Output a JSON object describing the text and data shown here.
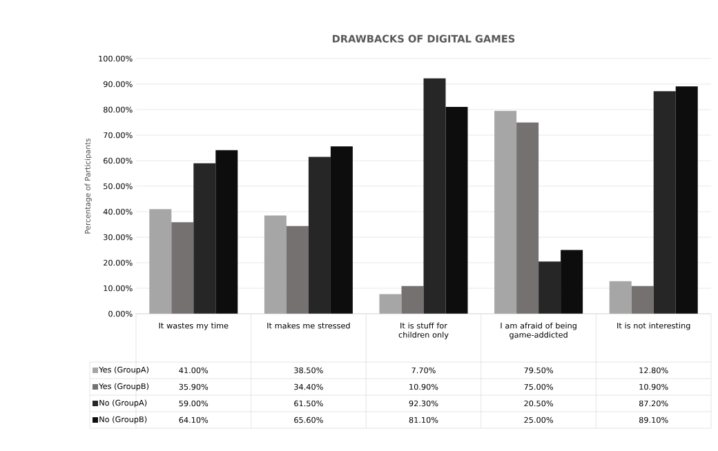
{
  "chart_data": {
    "type": "bar",
    "title": "DRAWBACKS OF DIGITAL GAMES",
    "ylabel": "Percentage of Participants",
    "categories": [
      "It wastes my time",
      "It makes me stressed",
      "It is stuff for children only",
      "I am afraid of being game-addicted",
      "It is not interesting"
    ],
    "series": [
      {
        "name": "Yes (GroupA)",
        "color": "#a6a6a6",
        "values": [
          41.0,
          38.5,
          7.7,
          79.5,
          12.8
        ],
        "value_labels": [
          "41.00%",
          "38.50%",
          "7.70%",
          "79.50%",
          "12.80%"
        ]
      },
      {
        "name": "Yes (GroupB)",
        "color": "#767171",
        "values": [
          35.9,
          34.4,
          10.9,
          75.0,
          10.9
        ],
        "value_labels": [
          "35.90%",
          "34.40%",
          "10.90%",
          "75.00%",
          "10.90%"
        ]
      },
      {
        "name": "No (GroupA)",
        "color": "#262626",
        "values": [
          59.0,
          61.5,
          92.3,
          20.5,
          87.2
        ],
        "value_labels": [
          "59.00%",
          "61.50%",
          "92.30%",
          "20.50%",
          "87.20%"
        ]
      },
      {
        "name": "No (GroupB)",
        "color": "#0d0d0d",
        "values": [
          64.1,
          65.6,
          81.1,
          25.0,
          89.1
        ],
        "value_labels": [
          "64.10%",
          "65.60%",
          "81.10%",
          "25.00%",
          "89.10%"
        ]
      }
    ],
    "ylim": [
      0,
      100
    ],
    "yticks": [
      {
        "value": 0,
        "label": "0.00%"
      },
      {
        "value": 10,
        "label": "10.00%"
      },
      {
        "value": 20,
        "label": "20.00%"
      },
      {
        "value": 30,
        "label": "30.00%"
      },
      {
        "value": 40,
        "label": "40.00%"
      },
      {
        "value": 50,
        "label": "50.00%"
      },
      {
        "value": 60,
        "label": "60.00%"
      },
      {
        "value": 70,
        "label": "70.00%"
      },
      {
        "value": 80,
        "label": "80.00%"
      },
      {
        "value": 90,
        "label": "90.00%"
      },
      {
        "value": 100,
        "label": "100.00%"
      }
    ],
    "grid": "y",
    "legend": "bottom"
  }
}
